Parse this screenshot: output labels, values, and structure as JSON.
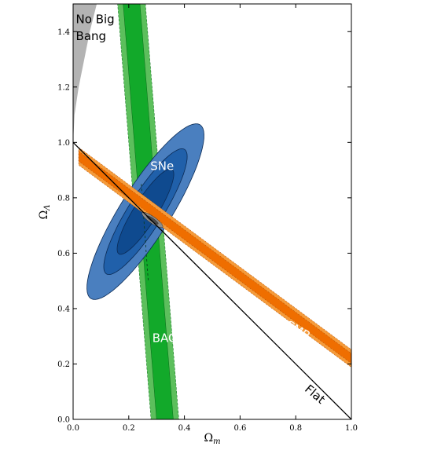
{
  "chart_data": {
    "type": "contour",
    "xlabel": "Ω",
    "xlabel_sub": "m",
    "ylabel": "Ω",
    "ylabel_sub": "Λ",
    "xlim": [
      0.0,
      1.0
    ],
    "ylim": [
      0.0,
      1.5
    ],
    "xticks": [
      "0.0",
      "0.2",
      "0.4",
      "0.6",
      "0.8",
      "1.0"
    ],
    "yticks": [
      "0.0",
      "0.2",
      "0.4",
      "0.6",
      "0.8",
      "1.0",
      "1.2",
      "1.4"
    ],
    "grid": false,
    "regions": [
      {
        "name": "No Big Bang",
        "label_lines": [
          "No Big",
          "Bang"
        ],
        "color": "#b3b3b3",
        "boundary": [
          [
            0.0,
            1.0
          ],
          [
            0.005,
            1.1
          ],
          [
            0.02,
            1.2
          ],
          [
            0.04,
            1.3
          ],
          [
            0.06,
            1.4
          ],
          [
            0.085,
            1.5
          ]
        ]
      },
      {
        "name": "BAO",
        "label": "BAO",
        "colors": [
          "#5cbf5c",
          "#12a92a"
        ],
        "center_line": [
          [
            0.21,
            1.5
          ],
          [
            0.33,
            0.0
          ]
        ],
        "half_widths": [
          0.05,
          0.03
        ]
      },
      {
        "name": "SNe",
        "label": "SNe",
        "colors": [
          "#4a7fbf",
          "#2060aa",
          "#0f4a8f"
        ],
        "center": [
          0.26,
          0.75
        ],
        "major_axis_angle_deg": 58,
        "semi_axes": [
          [
            0.37,
            0.09
          ],
          [
            0.265,
            0.062
          ],
          [
            0.18,
            0.042
          ]
        ]
      },
      {
        "name": "CMB",
        "label": "CMB",
        "colors": [
          "#f59b3a",
          "#ef6e00"
        ],
        "center_line": [
          [
            0.02,
            0.95
          ],
          [
            1.0,
            0.22
          ]
        ],
        "half_widths": [
          0.032,
          0.018
        ]
      },
      {
        "name": "Combined",
        "label": "",
        "colors": [
          "#8c8c8c",
          "#4a4a4a"
        ],
        "center": [
          0.285,
          0.72
        ],
        "major_axis_angle_deg": -35,
        "semi_axes": [
          [
            0.045,
            0.012
          ],
          [
            0.025,
            0.006
          ]
        ]
      }
    ],
    "lines": [
      {
        "name": "Flat",
        "label": "Flat",
        "points": [
          [
            0.0,
            1.0
          ],
          [
            1.0,
            0.0
          ]
        ],
        "color": "#000000"
      }
    ]
  }
}
